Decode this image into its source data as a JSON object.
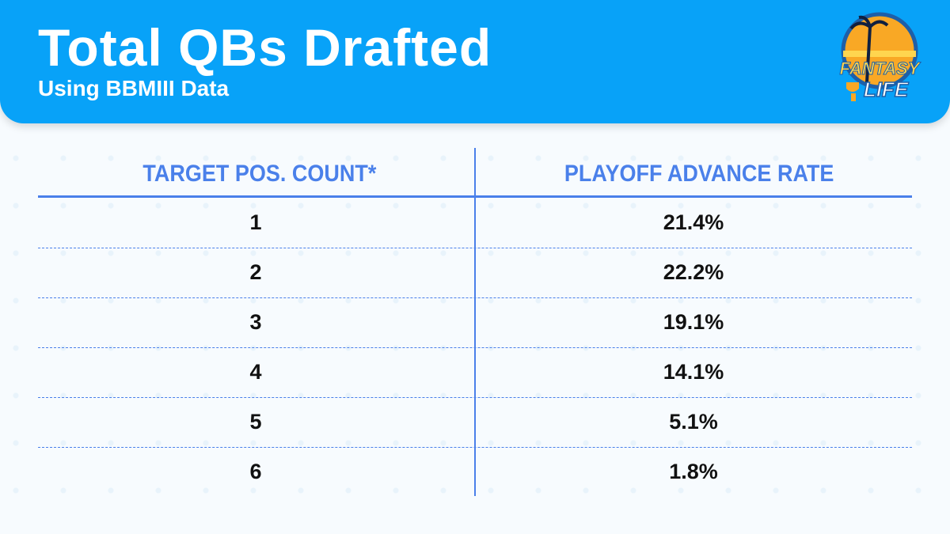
{
  "header": {
    "title": "Total QBs Drafted",
    "subtitle": "Using BBMIII Data",
    "logo_text": "FANTASY LIFE",
    "background_color": "#08a2f8"
  },
  "chart_data": {
    "type": "table",
    "columns": [
      "TARGET POS. COUNT*",
      "PLAYOFF ADVANCE RATE"
    ],
    "rows": [
      [
        "1",
        "21.4%"
      ],
      [
        "2",
        "22.2%"
      ],
      [
        "3",
        "19.1%"
      ],
      [
        "4",
        "14.1%"
      ],
      [
        "5",
        "5.1%"
      ],
      [
        "6",
        "1.8%"
      ]
    ],
    "accent_color": "#4a80ea"
  }
}
